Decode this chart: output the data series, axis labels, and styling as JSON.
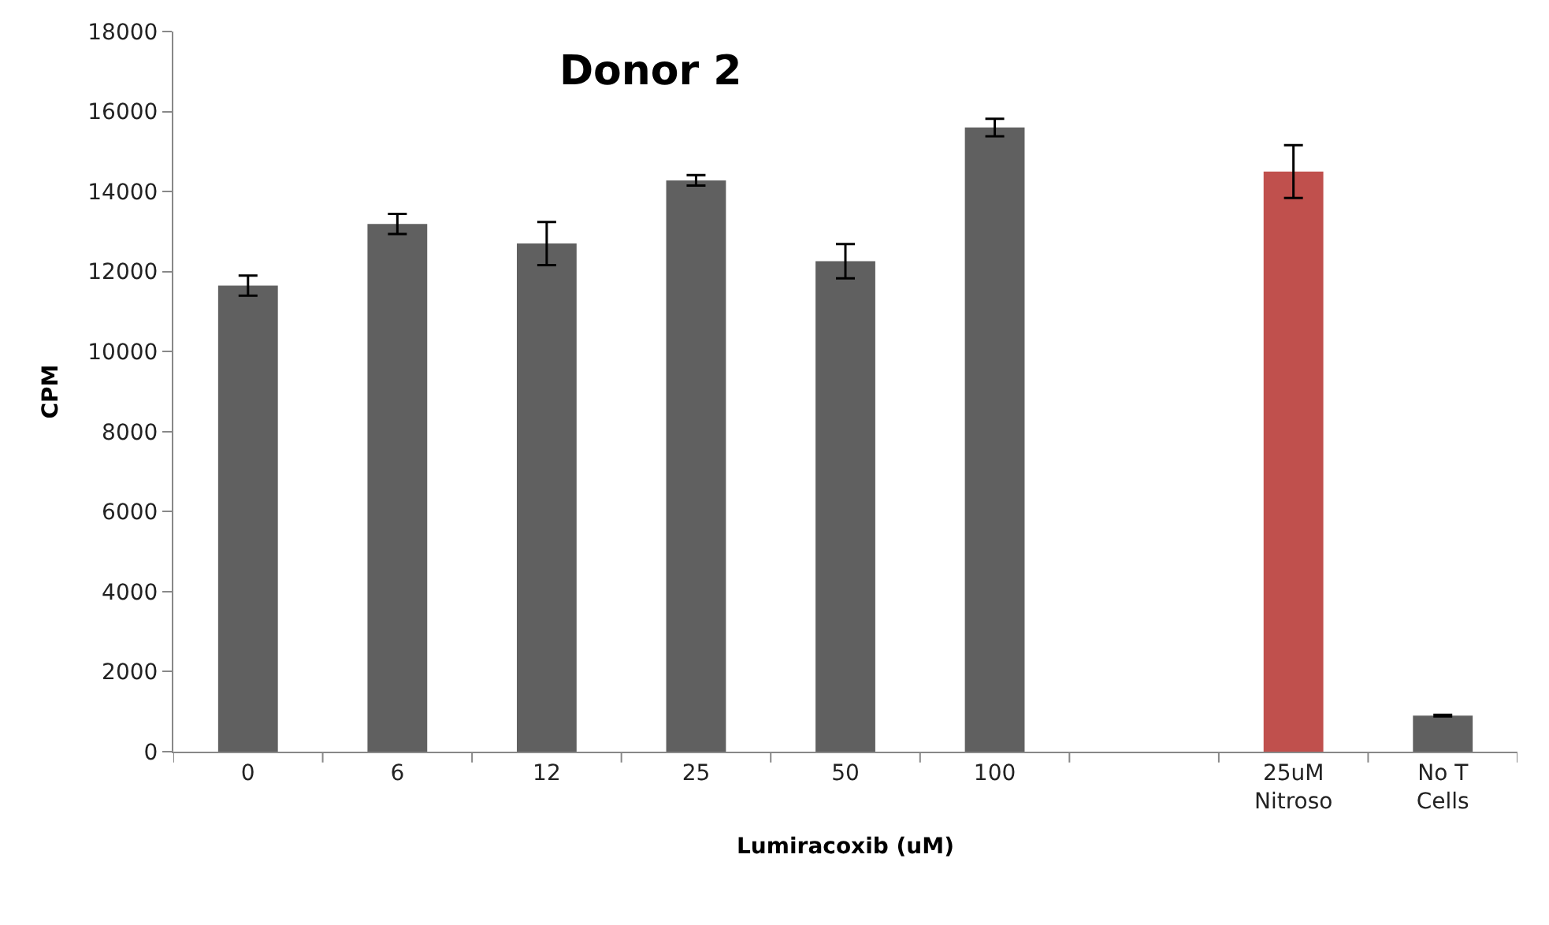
{
  "chart_data": {
    "type": "bar",
    "title": "Donor 2",
    "xlabel": "Lumiracoxib (uM)",
    "ylabel": "CPM",
    "categories": [
      "0",
      "6",
      "12",
      "25",
      "50",
      "100",
      null,
      "25uM\nNitroso",
      "No T\nCells"
    ],
    "values": [
      11650,
      13190,
      12700,
      14280,
      12260,
      15600,
      null,
      14500,
      900
    ],
    "errors": [
      250,
      250,
      540,
      130,
      430,
      220,
      null,
      660,
      20
    ],
    "colors": [
      "#606060",
      "#606060",
      "#606060",
      "#606060",
      "#606060",
      "#606060",
      "#606060",
      "#c0504d",
      "#606060"
    ],
    "ylim": [
      0,
      18000
    ],
    "yticks": [
      0,
      2000,
      4000,
      6000,
      8000,
      10000,
      12000,
      14000,
      16000,
      18000
    ]
  }
}
